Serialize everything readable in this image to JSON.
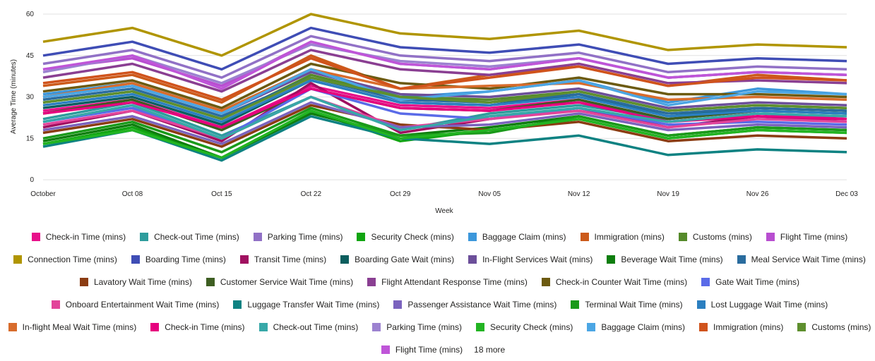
{
  "chart_data": {
    "type": "line",
    "title": "",
    "xlabel": "Week",
    "ylabel": "Average Time (minutes)",
    "ylim": [
      0,
      60
    ],
    "yticks": [
      "0",
      "15",
      "30",
      "45",
      "60"
    ],
    "categories": [
      "October",
      "Oct 08",
      "Oct 15",
      "Oct 22",
      "Oct 29",
      "Nov 05",
      "Nov 12",
      "Nov 19",
      "Nov 26",
      "Dec 03"
    ],
    "legend_position": "bottom",
    "legend_more": "18 more",
    "series": [
      {
        "name": "Check-in Time (mins)",
        "color": "#E8108A",
        "values": [
          25,
          29,
          19,
          34,
          27,
          26,
          29,
          21,
          24,
          22
        ]
      },
      {
        "name": "Check-out Time (mins)",
        "color": "#2E9C9C",
        "values": [
          22,
          28,
          16,
          30,
          18,
          24,
          27,
          22,
          25,
          24
        ]
      },
      {
        "name": "Parking Time (mins)",
        "color": "#9171C6",
        "values": [
          42,
          47,
          37,
          52,
          45,
          43,
          46,
          39,
          41,
          40
        ]
      },
      {
        "name": "Security Check (mins)",
        "color": "#11A511",
        "values": [
          13,
          19,
          8,
          25,
          14,
          18,
          22,
          15,
          18,
          17
        ]
      },
      {
        "name": "Baggage Claim (mins)",
        "color": "#3C97DB",
        "values": [
          31,
          35,
          25,
          40,
          30,
          32,
          36,
          28,
          33,
          31
        ]
      },
      {
        "name": "Immigration (mins)",
        "color": "#CC5A1A",
        "values": [
          34,
          38,
          28,
          45,
          33,
          38,
          41,
          34,
          38,
          36
        ]
      },
      {
        "name": "Customs (mins)",
        "color": "#558A2A",
        "values": [
          28,
          32,
          22,
          38,
          30,
          29,
          32,
          25,
          27,
          26
        ]
      },
      {
        "name": "Flight Time (mins)",
        "color": "#B84ED0",
        "values": [
          40,
          44,
          34,
          50,
          42,
          40,
          44,
          37,
          39,
          38
        ]
      },
      {
        "name": "Connection Time (mins)",
        "color": "#B09500",
        "values": [
          50,
          55,
          45,
          60,
          53,
          51,
          54,
          47,
          49,
          48
        ]
      },
      {
        "name": "Boarding Time (mins)",
        "color": "#3F4DB5",
        "values": [
          45,
          50,
          40,
          55,
          48,
          46,
          49,
          42,
          44,
          43
        ]
      },
      {
        "name": "Transit Time (mins)",
        "color": "#A01060",
        "values": [
          19,
          25,
          14,
          35,
          17,
          22,
          26,
          19,
          23,
          21
        ]
      },
      {
        "name": "Boarding Gate Wait (mins)",
        "color": "#0B5E5E",
        "values": [
          26,
          30,
          20,
          36,
          28,
          27,
          31,
          23,
          26,
          25
        ]
      },
      {
        "name": "In-Flight Services Wait (mins)",
        "color": "#6C4F9A",
        "values": [
          30,
          34,
          24,
          39,
          31,
          30,
          33,
          26,
          28,
          27
        ]
      },
      {
        "name": "Beverage Wait Time (mins)",
        "color": "#0E7E0E",
        "values": [
          14,
          20,
          8,
          24,
          16,
          19,
          23,
          16,
          19,
          18
        ]
      },
      {
        "name": "Meal Service Wait Time (mins)",
        "color": "#2A6C9E",
        "values": [
          29,
          33,
          23,
          37,
          29,
          28,
          31,
          24,
          26,
          25
        ]
      },
      {
        "name": "Lavatory Wait Time (mins)",
        "color": "#8B3C12",
        "values": [
          17,
          22,
          12,
          27,
          20,
          18,
          21,
          14,
          16,
          15
        ]
      },
      {
        "name": "Customer Service Wait Time (mins)",
        "color": "#3E5E22",
        "values": [
          24,
          29,
          18,
          33,
          26,
          25,
          29,
          22,
          25,
          24
        ]
      },
      {
        "name": "Flight Attendant Response Time (mins)",
        "color": "#8A3F92",
        "values": [
          37,
          42,
          32,
          47,
          40,
          38,
          42,
          35,
          36,
          35
        ]
      },
      {
        "name": "Check-in Counter Wait Time (mins)",
        "color": "#6C5A10",
        "values": [
          32,
          36,
          26,
          42,
          35,
          33,
          37,
          31,
          31,
          30
        ]
      },
      {
        "name": "Gate Wait Time (mins)",
        "color": "#5A6BE8",
        "values": [
          21,
          26,
          15,
          33,
          24,
          22,
          26,
          20,
          21,
          20
        ]
      },
      {
        "name": "Onboard Entertainment Wait Time (mins)",
        "color": "#E2459A",
        "values": [
          20,
          25,
          15,
          30,
          19,
          22,
          25,
          19,
          22,
          21
        ]
      },
      {
        "name": "Luggage Transfer Wait Time (mins)",
        "color": "#0E8282",
        "values": [
          12,
          18,
          7,
          23,
          15,
          13,
          16,
          9,
          11,
          10
        ]
      },
      {
        "name": "Passenger Assistance Wait Time (mins)",
        "color": "#7B63BE",
        "values": [
          18,
          23,
          13,
          28,
          19,
          20,
          24,
          18,
          20,
          19
        ]
      },
      {
        "name": "Terminal Wait Time (mins)",
        "color": "#1A9A1A",
        "values": [
          15,
          21,
          10,
          26,
          16,
          17,
          23,
          16,
          19,
          18
        ]
      },
      {
        "name": "Lost Luggage Wait Time (mins)",
        "color": "#2B7FC0",
        "values": [
          27,
          31,
          21,
          36,
          28,
          27,
          30,
          23,
          25,
          24
        ]
      },
      {
        "name": "In-flight Meal Wait Time (mins)",
        "color": "#D86C2C",
        "values": [
          30,
          35,
          25,
          40,
          33,
          34,
          35,
          29,
          30,
          29
        ]
      },
      {
        "name": "Check-in Time (mins)",
        "color": "#E6007E",
        "values": [
          24,
          28,
          19,
          33,
          26,
          25,
          28,
          21,
          23,
          22
        ]
      },
      {
        "name": "Check-out Time (mins)",
        "color": "#37A8A8",
        "values": [
          21,
          27,
          15,
          30,
          18,
          23,
          26,
          21,
          24,
          23
        ]
      },
      {
        "name": "Parking Time (mins)",
        "color": "#9C82D0",
        "values": [
          39,
          45,
          35,
          49,
          43,
          41,
          44,
          37,
          39,
          38
        ]
      },
      {
        "name": "Security Check (mins)",
        "color": "#22B422",
        "values": [
          13,
          18,
          8,
          25,
          15,
          18,
          22,
          15,
          18,
          17
        ]
      },
      {
        "name": "Baggage Claim (mins)",
        "color": "#4BA6E4",
        "values": [
          30,
          34,
          24,
          40,
          29,
          32,
          36,
          27,
          32,
          31
        ]
      },
      {
        "name": "Immigration (mins)",
        "color": "#D0531C",
        "values": [
          35,
          39,
          29,
          44,
          33,
          37,
          41,
          34,
          37,
          36
        ]
      },
      {
        "name": "Customs (mins)",
        "color": "#5E8F2E",
        "values": [
          28,
          32,
          22,
          37,
          30,
          28,
          32,
          25,
          27,
          26
        ]
      },
      {
        "name": "Flight Time (mins)",
        "color": "#BF55D8",
        "values": [
          40,
          45,
          33,
          50,
          42,
          40,
          44,
          37,
          39,
          38
        ]
      }
    ]
  }
}
